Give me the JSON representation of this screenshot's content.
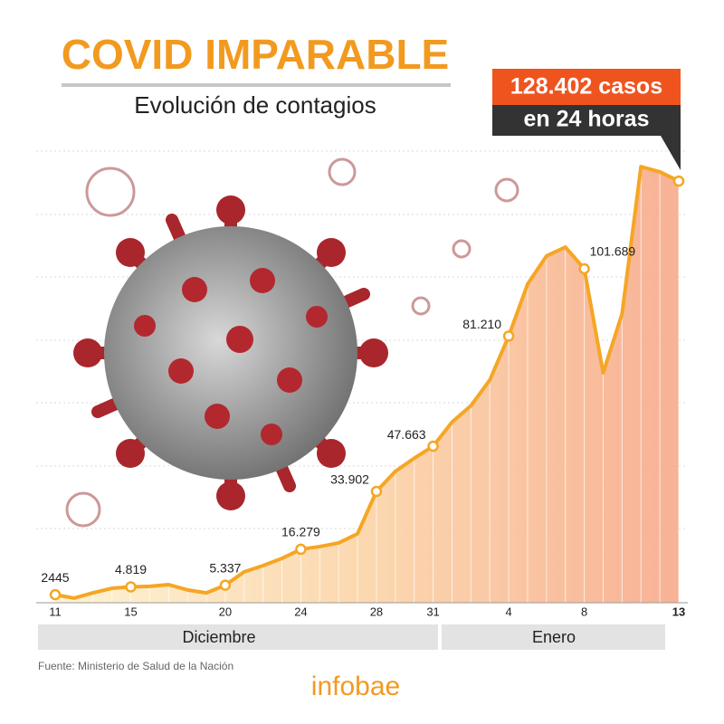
{
  "chart_data": {
    "type": "area",
    "title": "COVID IMPARABLE",
    "subtitle": "Evolución de contagios",
    "categories": [
      "11",
      null,
      null,
      null,
      "15",
      null,
      null,
      null,
      null,
      "20",
      null,
      null,
      null,
      "24",
      null,
      null,
      null,
      "28",
      null,
      null,
      "31",
      null,
      null,
      null,
      "4",
      null,
      null,
      null,
      "8",
      null,
      null,
      null,
      null,
      "13"
    ],
    "values": [
      2445,
      1400,
      3000,
      4400,
      4819,
      5000,
      5500,
      3900,
      3000,
      5337,
      9400,
      11300,
      13500,
      16279,
      17100,
      18200,
      21000,
      33902,
      40000,
      44000,
      47663,
      55000,
      60000,
      67800,
      81210,
      97000,
      105600,
      108300,
      101689,
      70000,
      88000,
      132800,
      131200,
      128402
    ],
    "value_labels": [
      "2445",
      null,
      null,
      null,
      "4.819",
      null,
      null,
      null,
      null,
      "5.337",
      null,
      null,
      null,
      "16.279",
      null,
      null,
      null,
      "33.902",
      null,
      null,
      "47.663",
      null,
      null,
      null,
      "81.210",
      null,
      null,
      null,
      "101.689",
      null,
      null,
      null,
      null,
      "128.402 casos"
    ],
    "annotation": "en 24 horas",
    "months": [
      "Diciembre",
      "Enero"
    ],
    "ylim": [
      0,
      140000
    ],
    "color": "#f5a623",
    "source": "Fuente: Ministerio de Salud de la Nación",
    "brand": "infobae"
  }
}
